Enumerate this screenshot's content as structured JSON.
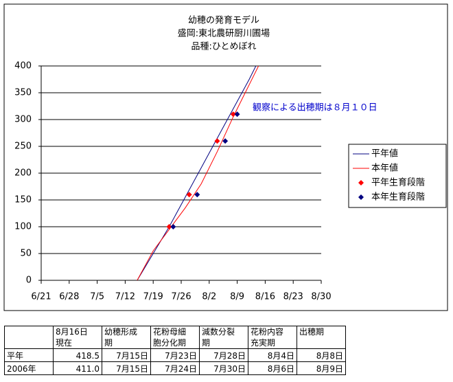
{
  "chart_data": {
    "type": "line",
    "title": [
      "幼穂の発育モデル",
      "盛岡:東北農研厨川圃場",
      "品種:ひとめぼれ"
    ],
    "annotation": "観察による出穂期は８月１０日",
    "xlim": [
      172,
      242
    ],
    "xticks": [
      {
        "value": 172,
        "label": "6/21"
      },
      {
        "value": 179,
        "label": "6/28"
      },
      {
        "value": 186,
        "label": "7/5"
      },
      {
        "value": 193,
        "label": "7/12"
      },
      {
        "value": 200,
        "label": "7/19"
      },
      {
        "value": 207,
        "label": "7/26"
      },
      {
        "value": 214,
        "label": "8/2"
      },
      {
        "value": 221,
        "label": "8/9"
      },
      {
        "value": 228,
        "label": "8/16"
      },
      {
        "value": 235,
        "label": "8/23"
      },
      {
        "value": 242,
        "label": "8/30"
      }
    ],
    "ylim": [
      0,
      400
    ],
    "yticks": [
      0,
      50,
      100,
      150,
      200,
      250,
      300,
      350,
      400
    ],
    "grid": true,
    "series": [
      {
        "name": "平年値",
        "type": "line",
        "color": "#000080",
        "x": [
          196,
          200,
          204,
          208,
          212,
          216,
          220,
          224,
          226
        ],
        "values": [
          0,
          50,
          100,
          155,
          210,
          265,
          320,
          375,
          405
        ]
      },
      {
        "name": "本年値",
        "type": "line",
        "color": "#ff0000",
        "x": [
          196,
          200,
          204,
          208,
          212,
          216,
          220,
          224,
          227
        ],
        "values": [
          0,
          55,
          95,
          135,
          180,
          240,
          305,
          365,
          410
        ]
      },
      {
        "name": "平年生育段階",
        "type": "scatter",
        "color": "#ff0000",
        "x": [
          204,
          209,
          216,
          220
        ],
        "values": [
          100,
          160,
          260,
          310
        ]
      },
      {
        "name": "本年生育段階",
        "type": "scatter",
        "color": "#000080",
        "x": [
          205,
          211,
          218,
          221
        ],
        "values": [
          100,
          160,
          260,
          310
        ]
      }
    ]
  },
  "table": {
    "header": [
      [
        "8月16日",
        "現在"
      ],
      [
        "幼穂形成",
        "期"
      ],
      [
        "花粉母細",
        "胞分化期"
      ],
      [
        "減数分裂",
        "期"
      ],
      [
        "花粉内容",
        "充実期"
      ],
      [
        "出穂期"
      ]
    ],
    "rows": [
      [
        "平年",
        "418.5",
        "7月15日",
        "7月23日",
        "7月28日",
        "8月4日",
        "8月8日"
      ],
      [
        "2006年",
        "411.0",
        "7月15日",
        "7月24日",
        "7月30日",
        "8月6日",
        "8月9日"
      ]
    ]
  }
}
